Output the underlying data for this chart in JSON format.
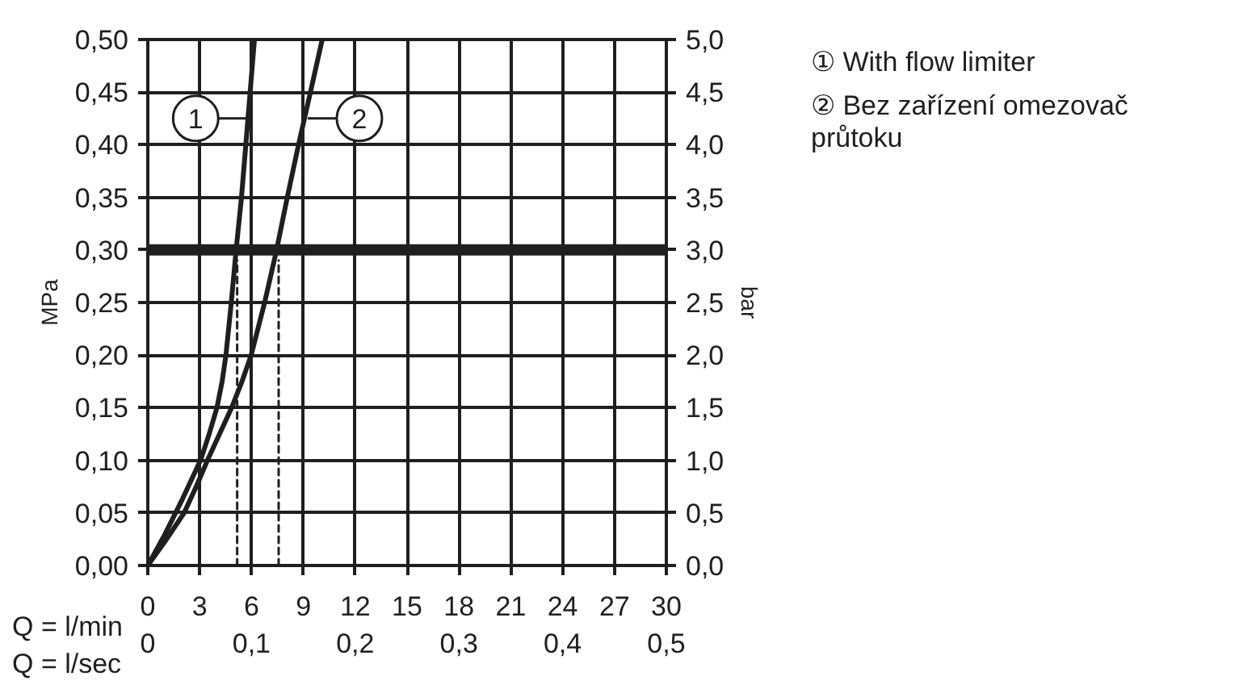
{
  "chart_data": {
    "type": "line",
    "xlabel": "Q = l/min",
    "x2label": "Q = l/sec",
    "ylabel": "MPa",
    "y2label": "bar",
    "xlim": [
      0,
      30
    ],
    "xticks": [
      0,
      3,
      6,
      9,
      12,
      15,
      18,
      21,
      24,
      27,
      30
    ],
    "x2lim": [
      0,
      0.5
    ],
    "x2ticks": [
      0,
      {
        "value": 0.1,
        "label": "0,1"
      },
      {
        "value": 0.2,
        "label": "0,2"
      },
      {
        "value": 0.3,
        "label": "0,3"
      },
      {
        "value": 0.4,
        "label": "0,4"
      },
      {
        "value": 0.5,
        "label": "0,5"
      }
    ],
    "ylim": [
      0,
      0.5
    ],
    "yticks": [
      {
        "value": 0,
        "label": "0,00"
      },
      {
        "value": 0.05,
        "label": "0,05"
      },
      {
        "value": 0.1,
        "label": "0,10"
      },
      {
        "value": 0.15,
        "label": "0,15"
      },
      {
        "value": 0.2,
        "label": "0,20"
      },
      {
        "value": 0.25,
        "label": "0,25"
      },
      {
        "value": 0.3,
        "label": "0,30"
      },
      {
        "value": 0.35,
        "label": "0,35"
      },
      {
        "value": 0.4,
        "label": "0,40"
      },
      {
        "value": 0.45,
        "label": "0,45"
      },
      {
        "value": 0.5,
        "label": "0,50"
      }
    ],
    "y2lim": [
      0,
      5
    ],
    "y2ticks": [
      {
        "value": 0,
        "label": "0,0"
      },
      {
        "value": 0.5,
        "label": "0,5"
      },
      {
        "value": 1,
        "label": "1,0"
      },
      {
        "value": 1.5,
        "label": "1,5"
      },
      {
        "value": 2,
        "label": "2,0"
      },
      {
        "value": 2.5,
        "label": "2,5"
      },
      {
        "value": 3,
        "label": "3,0"
      },
      {
        "value": 3.5,
        "label": "3,5"
      },
      {
        "value": 4,
        "label": "4,0"
      },
      {
        "value": 4.5,
        "label": "4,5"
      },
      {
        "value": 5,
        "label": "5,0"
      }
    ],
    "grid": true,
    "legend": "top right",
    "series": [
      {
        "name": "① With flow limiter",
        "color": "#1f1f1f",
        "x": [
          0,
          1,
          2,
          3.05,
          3.55,
          4.0,
          4.3,
          4.52,
          4.83,
          5.11,
          5.42,
          5.67,
          5.92,
          6.17
        ],
        "values": [
          0,
          0.03,
          0.063,
          0.1,
          0.125,
          0.15,
          0.175,
          0.2,
          0.25,
          0.3,
          0.35,
          0.4,
          0.45,
          0.5
        ]
      },
      {
        "name": "② Bez zařízení omezovač průtoku",
        "color": "#1f1f1f",
        "x": [
          0,
          1,
          2.1,
          2.8,
          3.45,
          4.15,
          4.85,
          5.45,
          5.98,
          6.76,
          7.45,
          8.07,
          8.72,
          9.41,
          10.09
        ],
        "values": [
          0,
          0.023,
          0.05,
          0.075,
          0.1,
          0.125,
          0.15,
          0.175,
          0.2,
          0.25,
          0.3,
          0.35,
          0.4,
          0.45,
          0.5
        ]
      },
      {
        "type": "line",
        "line_style": "dashed",
        "color": "#1f1f1f",
        "x": [
          5.17,
          5.17
        ],
        "values": [
          0,
          0.29
        ]
      },
      {
        "type": "line",
        "line_style": "dashed",
        "color": "#1f1f1f",
        "x": [
          7.57,
          7.57
        ],
        "values": [
          0,
          0.29
        ]
      }
    ],
    "ref_lines": [
      {
        "axis": "y",
        "value": 0.3,
        "color": "#1f1f1f"
      }
    ],
    "annotations": [
      {
        "text": "1",
        "x": 5.76,
        "y": 0.425
      },
      {
        "text": "2",
        "x": 9.25,
        "y": 0.425
      }
    ]
  }
}
